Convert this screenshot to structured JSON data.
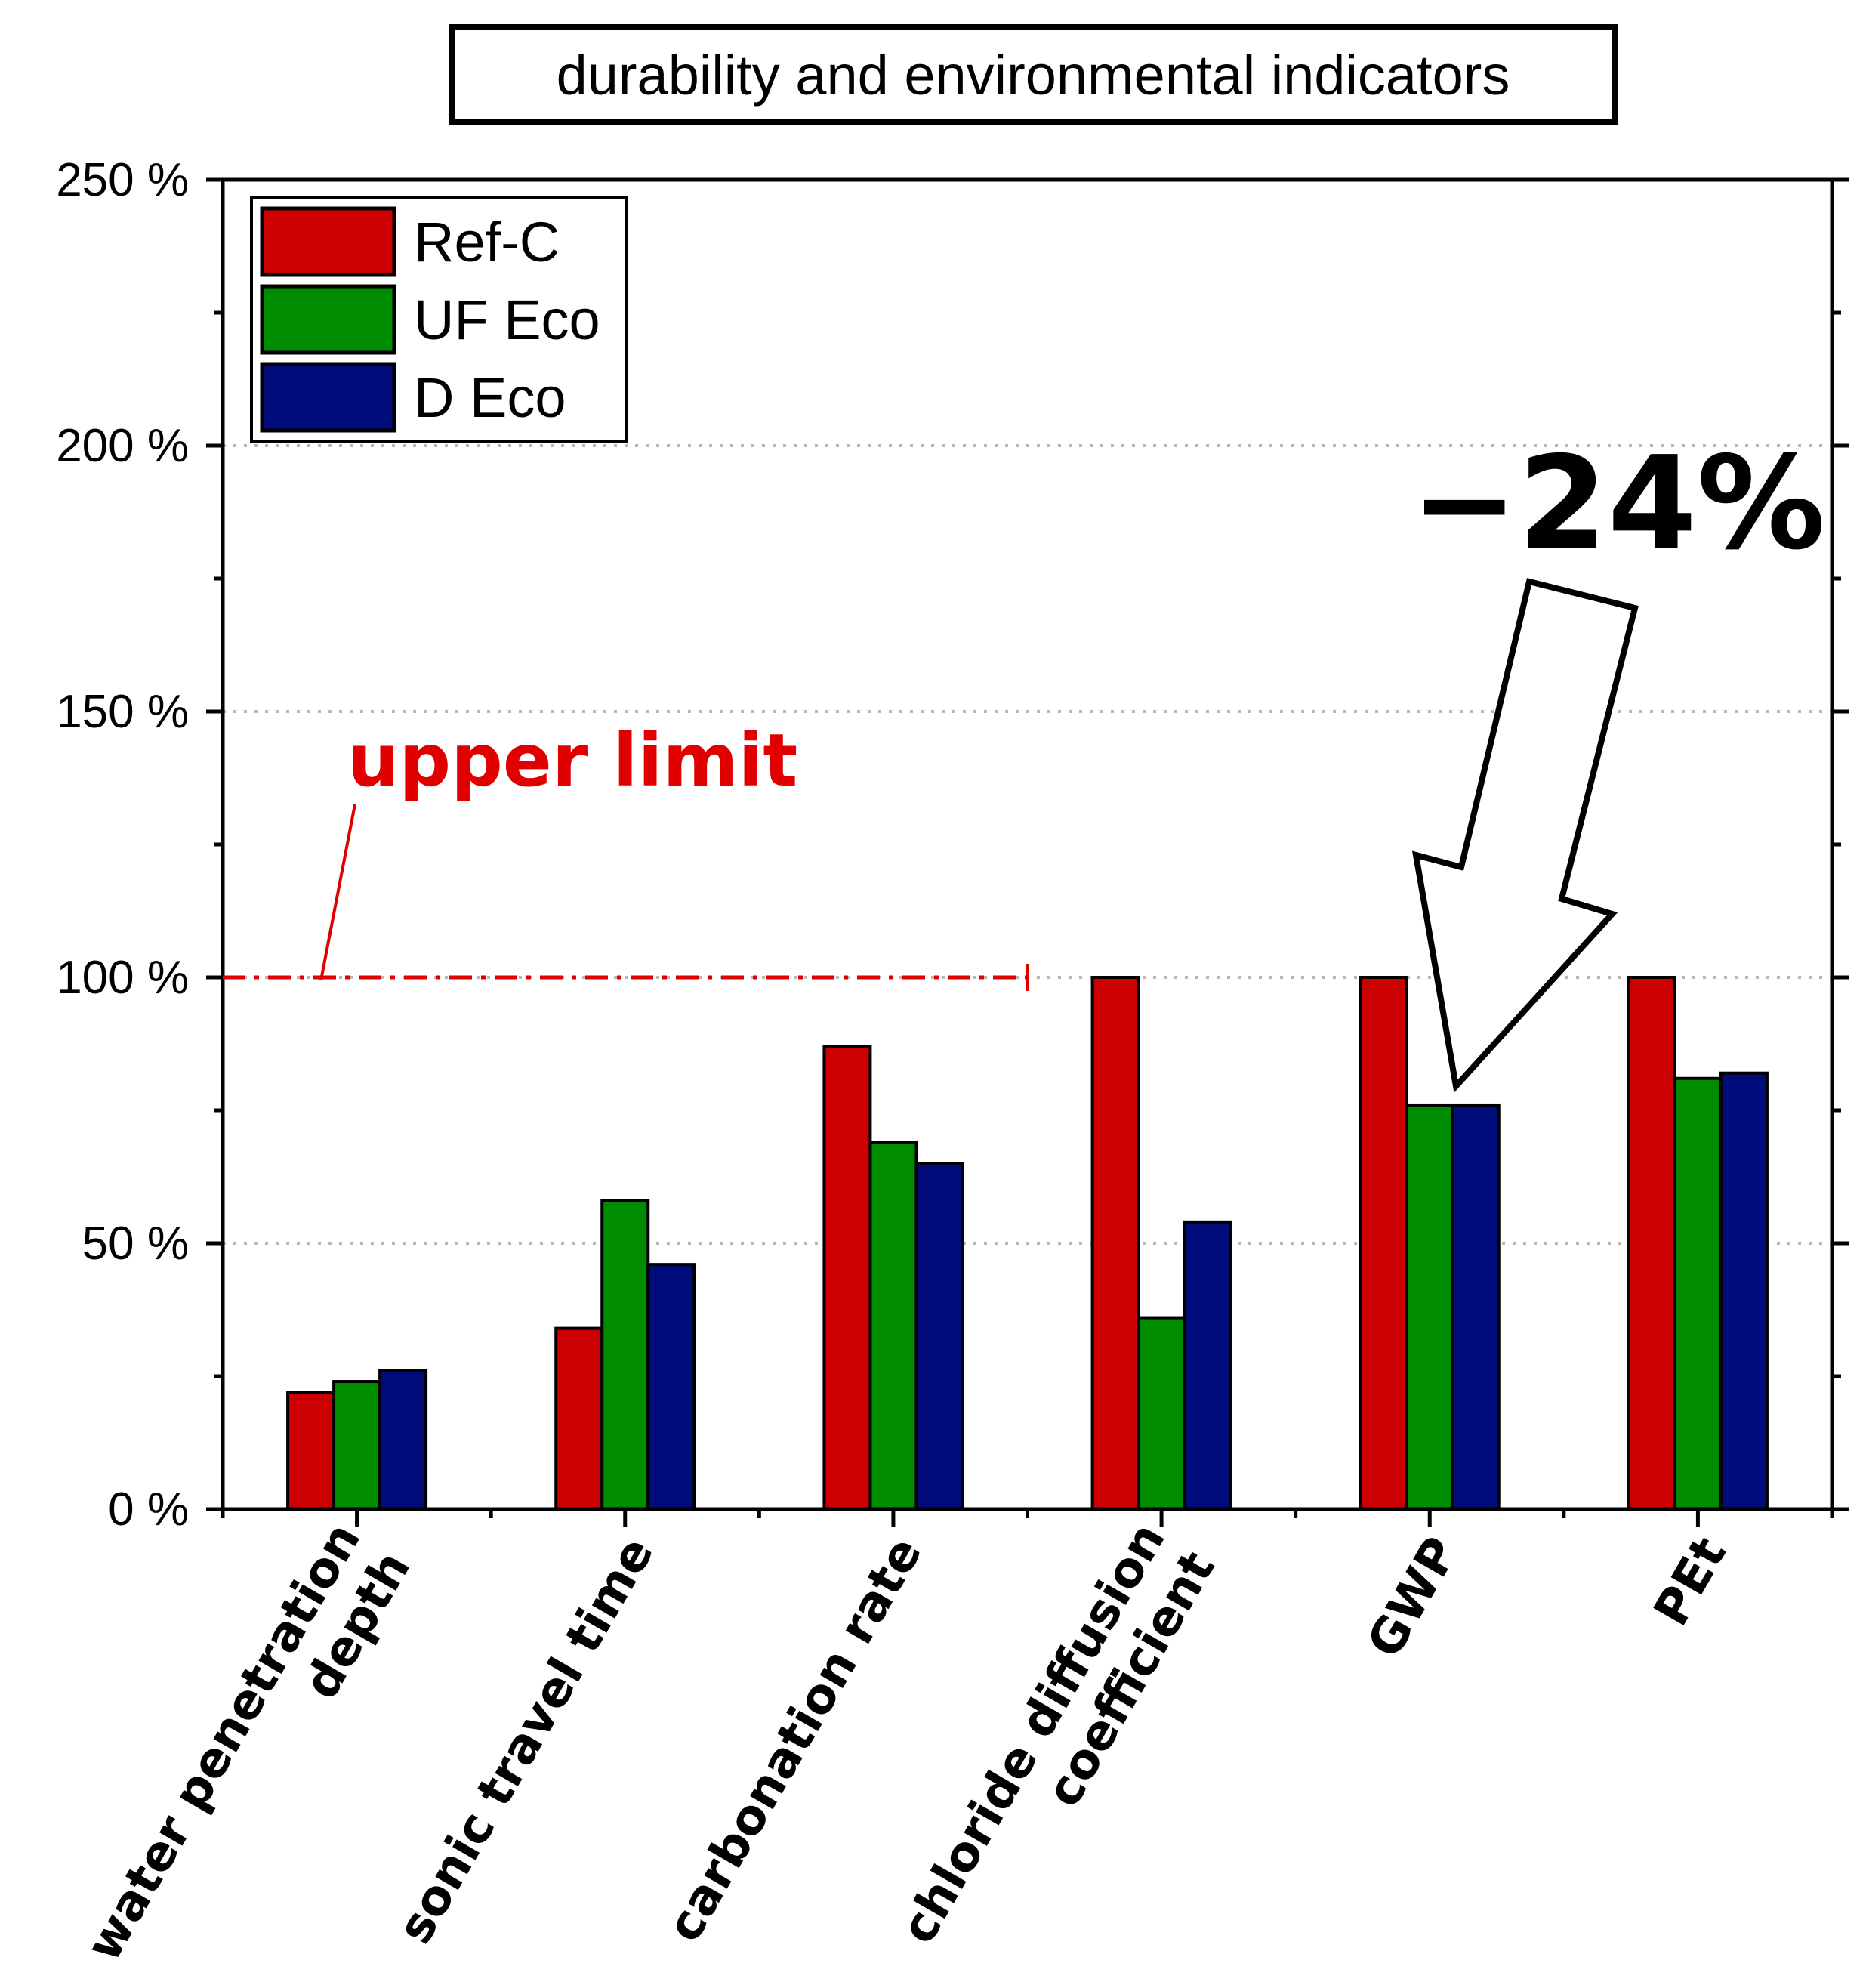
{
  "chart_data": {
    "type": "bar",
    "title": "durability and environmental indicators",
    "xlabel": "",
    "ylabel": "",
    "ylim": [
      0,
      250
    ],
    "yticks": [
      0,
      50,
      100,
      150,
      200,
      250
    ],
    "ytick_suffix": " %",
    "grid": "dotted horizontal at 50, 100, 150, 200",
    "legend_position": "top-left",
    "categories": [
      [
        "water penetration",
        "depth"
      ],
      [
        "sonic travel time"
      ],
      [
        "carbonation rate"
      ],
      [
        "chloride diffusion",
        "coefficient"
      ],
      [
        "GWP"
      ],
      [
        "PEt"
      ]
    ],
    "series": [
      {
        "name": "Ref-C",
        "color": "#cc0000",
        "values": [
          22,
          34,
          87,
          100,
          100,
          100
        ]
      },
      {
        "name": "UF Eco",
        "color": "#008c00",
        "values": [
          24,
          58,
          69,
          36,
          76,
          81
        ]
      },
      {
        "name": "D Eco",
        "color": "#000c7a",
        "values": [
          26,
          46,
          65,
          54,
          76,
          82
        ]
      }
    ],
    "annotations": {
      "upper_limit": {
        "text": "upper limit",
        "value": 100,
        "color": "#e00000",
        "spans_categories": "first three"
      },
      "reduction": {
        "text": "−24%",
        "points_to": "GWP"
      }
    }
  }
}
